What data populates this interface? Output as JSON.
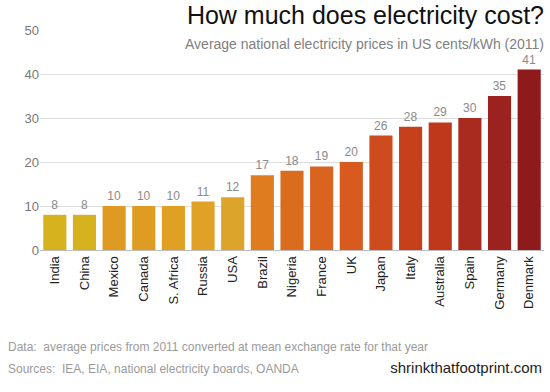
{
  "chart_data": {
    "type": "bar",
    "title": "How much does electricity cost?",
    "subtitle": "Average national electricity prices in US cents/kWh (2011)",
    "annotations": [
      "Data:  average prices from 2011 converted at mean exchange rate for that year",
      "Sources:  IEA, EIA, national electricity boards, OANDA",
      "shrinkthatfootprint.com"
    ],
    "categories": [
      "India",
      "China",
      "Mexico",
      "Canada",
      "S. Africa",
      "Russia",
      "USA",
      "Brazil",
      "Nigeria",
      "France",
      "UK",
      "Japan",
      "Italy",
      "Australia",
      "Spain",
      "Germany",
      "Denmark"
    ],
    "values": [
      8,
      8,
      10,
      10,
      10,
      11,
      12,
      17,
      18,
      19,
      20,
      26,
      28,
      29,
      30,
      35,
      41
    ],
    "colors": [
      "#d6b21e",
      "#d6b21e",
      "#df9a22",
      "#df9c22",
      "#dfa024",
      "#dfa226",
      "#dca42a",
      "#e07c20",
      "#da6c1e",
      "#d9641f",
      "#d85a1e",
      "#cd4b1c",
      "#c6401c",
      "#c0381c",
      "#a92a1e",
      "#9c2220",
      "#8e1a1c"
    ],
    "ylim": [
      0,
      50
    ],
    "yticks": [
      0,
      10,
      20,
      30,
      40,
      50
    ],
    "grid": true,
    "data_labels": true
  }
}
